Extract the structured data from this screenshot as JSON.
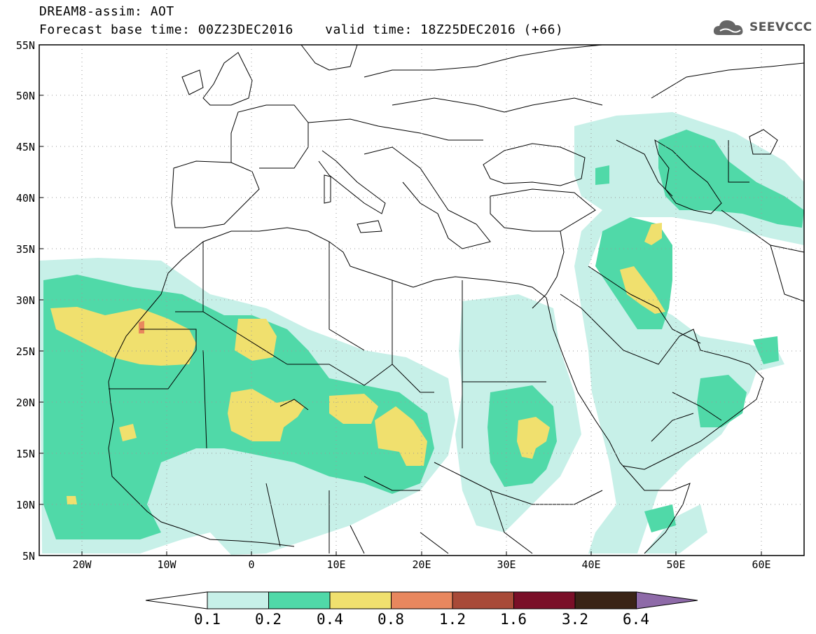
{
  "header": {
    "line1": "DREAM8-assim: AOT",
    "line2": "Forecast base time: 00Z23DEC2016    valid time: 18Z25DEC2016 (+66)"
  },
  "logo": {
    "text": "SEEVCCC",
    "icon": "cloud-icon"
  },
  "map": {
    "lat_labels": [
      "55N",
      "50N",
      "45N",
      "40N",
      "35N",
      "30N",
      "25N",
      "20N",
      "15N",
      "10N",
      "5N"
    ],
    "lon_labels": [
      "20W",
      "10W",
      "0",
      "10E",
      "20E",
      "30E",
      "40E",
      "50E",
      "60E"
    ],
    "lon_range": [
      -25,
      65
    ],
    "lat_range": [
      5,
      55
    ],
    "frame_color": "#000000"
  },
  "colorbar": {
    "labels": [
      "0.1",
      "0.2",
      "0.4",
      "0.8",
      "1.2",
      "1.6",
      "3.2",
      "6.4"
    ],
    "colors": [
      "#ffffff",
      "#c7f0e8",
      "#50d9a8",
      "#f0e06e",
      "#e8875e",
      "#a84a38",
      "#7a0f28",
      "#3a2416",
      "#8e6aa8"
    ]
  },
  "field_colors": {
    "level1": "#c7f0e8",
    "level2": "#50d9a8",
    "level3": "#f0e06e",
    "level4": "#e8875e"
  }
}
